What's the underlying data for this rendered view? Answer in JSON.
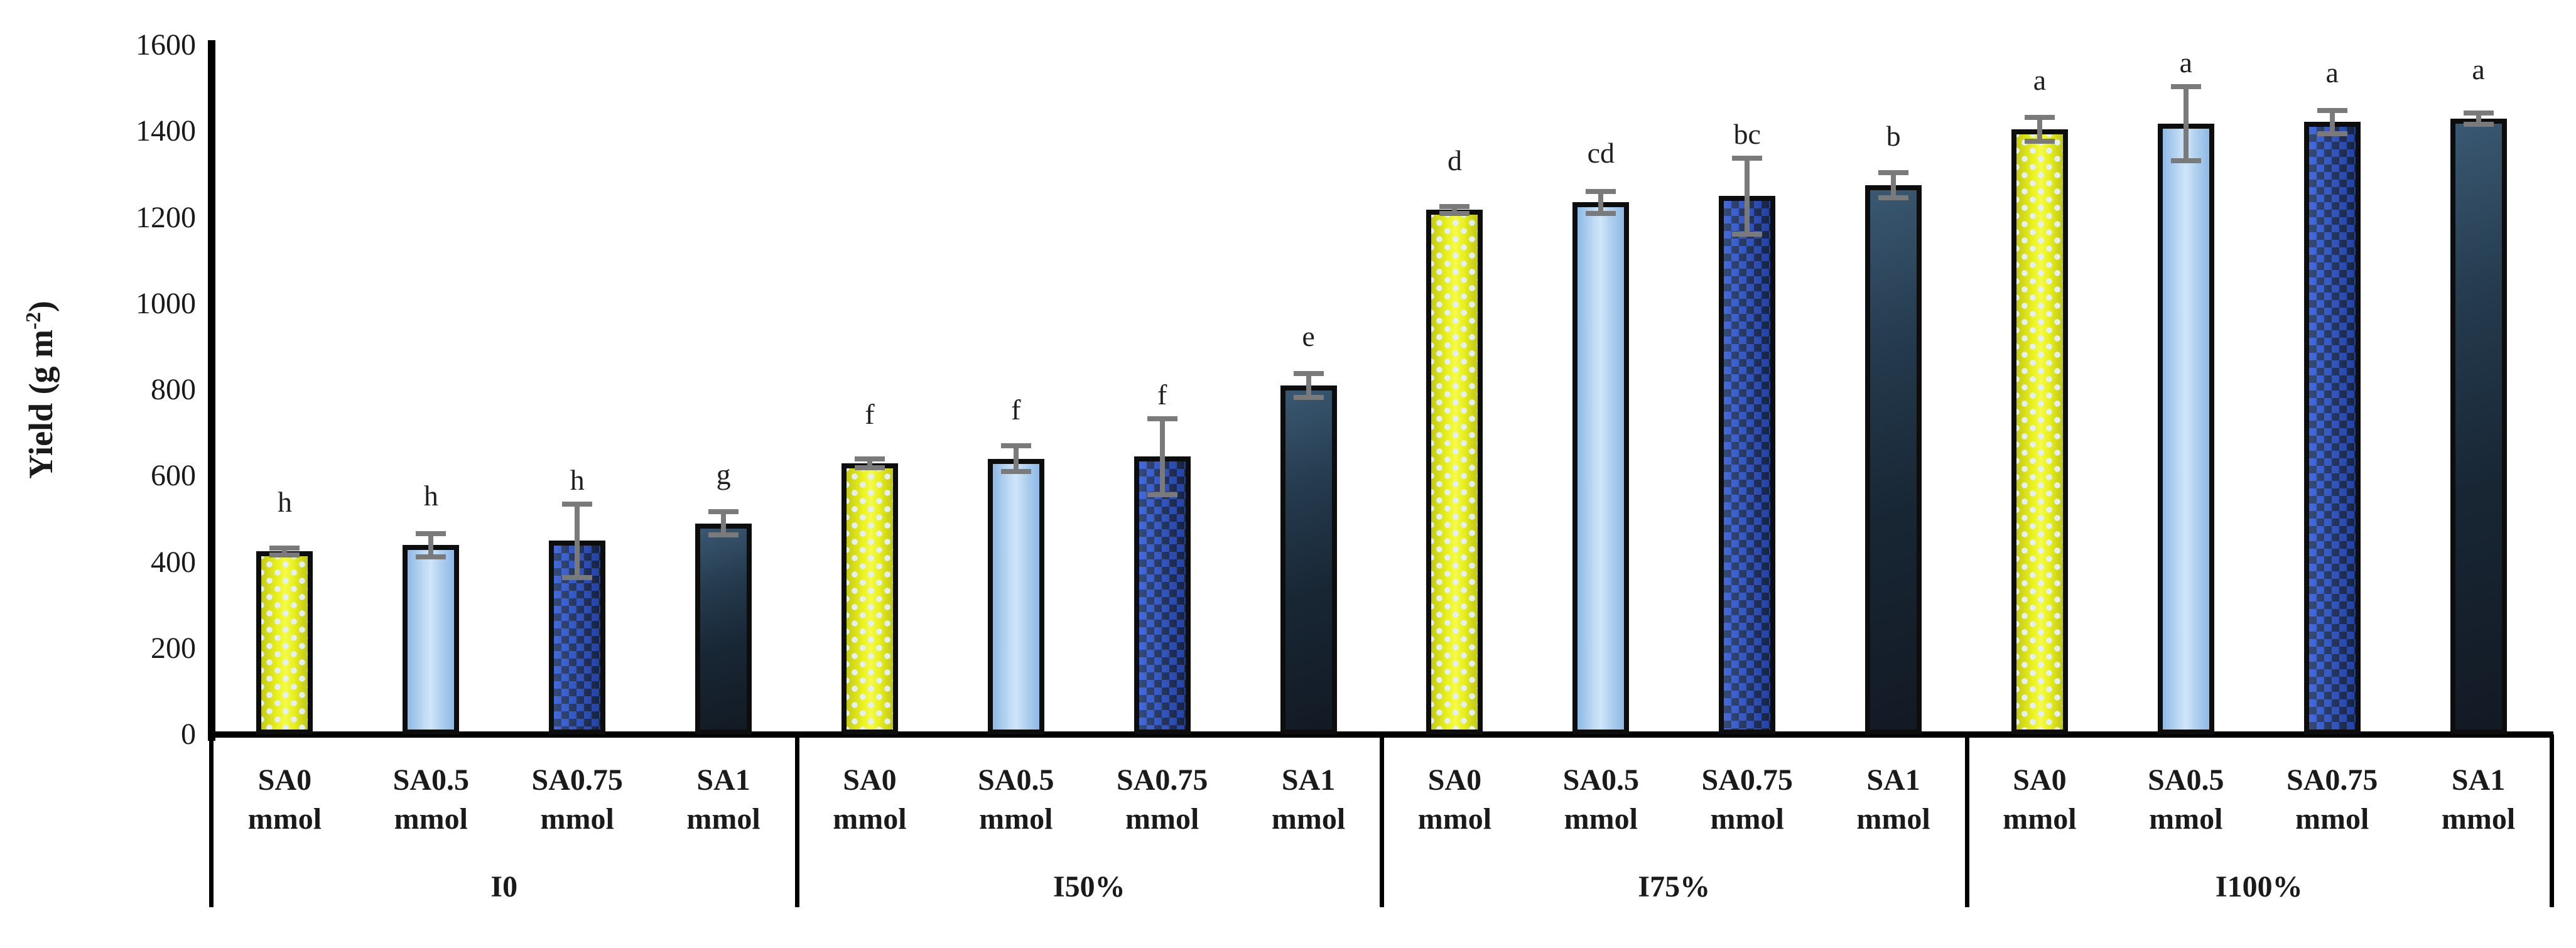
{
  "page": {
    "background": "#ffffff"
  },
  "chart_data": {
    "type": "bar",
    "title": "",
    "ylabel": {
      "pre": "Yield (g m",
      "sup": "-2",
      "post": ")"
    },
    "ylabel_text": "Yield (g m-2)",
    "ylim": [
      0,
      1600
    ],
    "ytick_step": 200,
    "yticks": [
      0,
      200,
      400,
      600,
      800,
      1000,
      1200,
      1400,
      1600
    ],
    "grid": false,
    "legend": false,
    "error_bars": true,
    "groups": [
      {
        "label": "I0",
        "bars": [
          {
            "label": "SA0 mmol",
            "value": 425,
            "error": 8,
            "letter": "h",
            "style": "yellow-dots"
          },
          {
            "label": "SA0.5 mmol",
            "value": 440,
            "error": 27,
            "letter": "h",
            "style": "light-blue"
          },
          {
            "label": "SA0.75 mmol",
            "value": 450,
            "error": 85,
            "letter": "h",
            "style": "blue-checker"
          },
          {
            "label": "SA1 mmol",
            "value": 490,
            "error": 27,
            "letter": "g",
            "style": "dark-navy"
          }
        ]
      },
      {
        "label": "I50%",
        "bars": [
          {
            "label": "SA0 mmol",
            "value": 630,
            "error": 10,
            "letter": "f",
            "style": "yellow-dots"
          },
          {
            "label": "SA0.5 mmol",
            "value": 640,
            "error": 30,
            "letter": "f",
            "style": "light-blue"
          },
          {
            "label": "SA0.75 mmol",
            "value": 645,
            "error": 88,
            "letter": "f",
            "style": "blue-checker"
          },
          {
            "label": "SA1 mmol",
            "value": 810,
            "error": 28,
            "letter": "e",
            "style": "dark-navy"
          }
        ]
      },
      {
        "label": "I75%",
        "bars": [
          {
            "label": "SA0 mmol",
            "value": 1218,
            "error": 8,
            "letter": "d",
            "style": "yellow-dots"
          },
          {
            "label": "SA0.5 mmol",
            "value": 1235,
            "error": 26,
            "letter": "cd",
            "style": "light-blue"
          },
          {
            "label": "SA0.75 mmol",
            "value": 1250,
            "error": 88,
            "letter": "bc",
            "style": "blue-checker"
          },
          {
            "label": "SA1 mmol",
            "value": 1275,
            "error": 29,
            "letter": "b",
            "style": "dark-navy"
          }
        ]
      },
      {
        "label": "I100%",
        "bars": [
          {
            "label": "SA0 mmol",
            "value": 1405,
            "error": 28,
            "letter": "a",
            "style": "yellow-dots"
          },
          {
            "label": "SA0.5 mmol",
            "value": 1418,
            "error": 86,
            "letter": "a",
            "style": "light-blue"
          },
          {
            "label": "SA0.75 mmol",
            "value": 1422,
            "error": 27,
            "letter": "a",
            "style": "blue-checker"
          },
          {
            "label": "SA1 mmol",
            "value": 1430,
            "error": 13,
            "letter": "a",
            "style": "dark-navy"
          }
        ]
      }
    ],
    "styles": {
      "yellow-dots": {
        "base": "#e9f01d",
        "dots": "#e3eefc"
      },
      "light-blue": {
        "edge": "#8db9e6",
        "center": "#cfe6fa"
      },
      "blue-checker": {
        "base": "#2f55cf",
        "check": "#1b2a45"
      },
      "dark-navy": {
        "from": "#3a5872",
        "to": "#121a24"
      }
    },
    "error_color": "#7a7a7a",
    "axis_color": "#000000",
    "text_color": "#1a1a1a"
  }
}
